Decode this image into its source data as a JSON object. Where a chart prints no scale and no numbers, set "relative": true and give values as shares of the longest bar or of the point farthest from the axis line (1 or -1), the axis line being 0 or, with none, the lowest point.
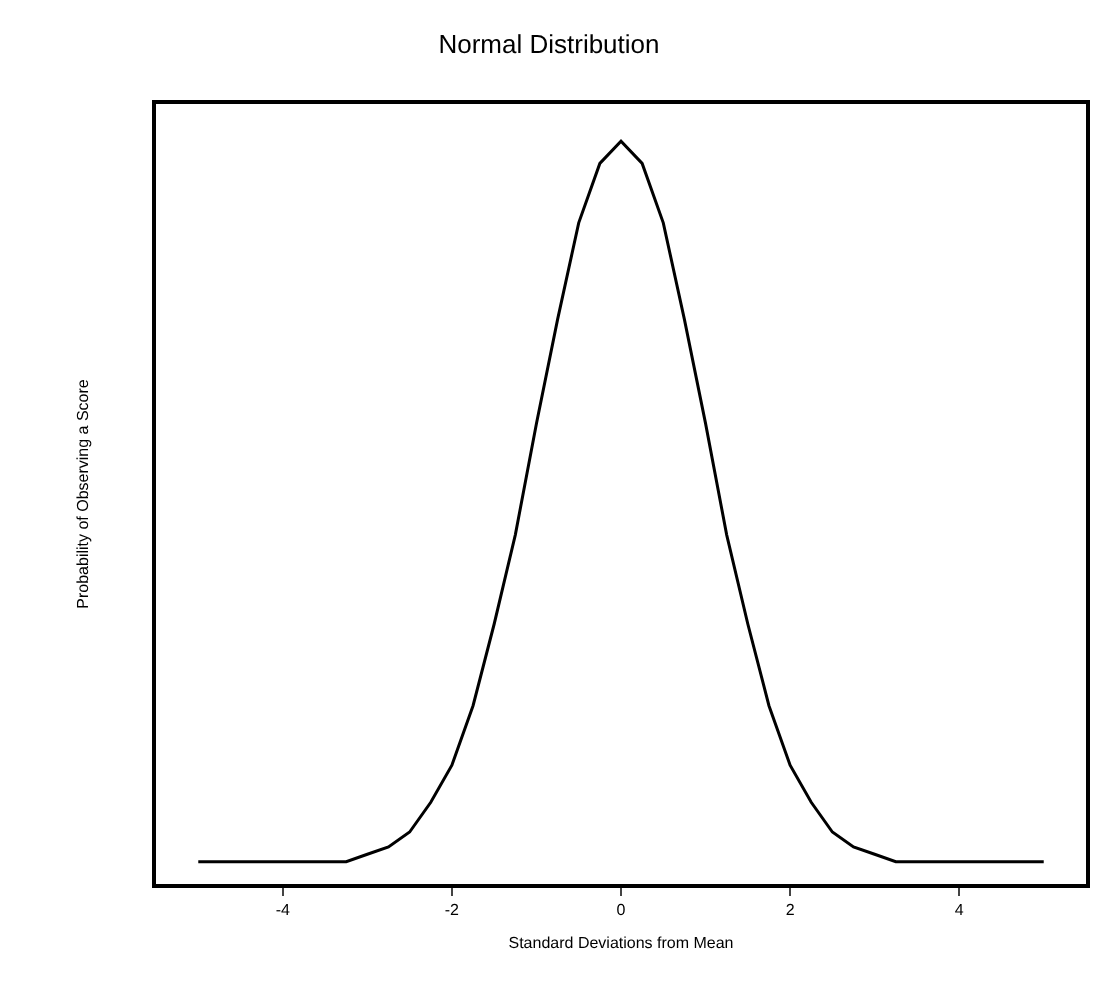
{
  "chart_data": {
    "type": "line",
    "title": "Normal Distribution",
    "xlabel": "Standard Deviations from Mean",
    "ylabel": "Probability of Observing a Score",
    "relative": true,
    "x": [
      -5,
      -4.75,
      -4.5,
      -4.25,
      -4,
      -3.75,
      -3.5,
      -3.25,
      -3,
      -2.75,
      -2.5,
      -2.25,
      -2,
      -1.75,
      -1.5,
      -1.25,
      -1,
      -0.75,
      -0.5,
      -0.25,
      0,
      0.25,
      0.5,
      0.75,
      1,
      1.25,
      1.5,
      1.75,
      2,
      2.25,
      2.5,
      2.75,
      3,
      3.25,
      3.5,
      3.75,
      4,
      4.25,
      4.5,
      4.75,
      5
    ],
    "series": [
      {
        "color": "#000000",
        "values": [
          0.03,
          0.03,
          0.03,
          0.03,
          0.03,
          0.03,
          0.03,
          0.03,
          0.04,
          0.05,
          0.07,
          0.11,
          0.16,
          0.24,
          0.35,
          0.47,
          0.62,
          0.76,
          0.89,
          0.97,
          1,
          0.97,
          0.89,
          0.76,
          0.62,
          0.47,
          0.35,
          0.24,
          0.16,
          0.11,
          0.07,
          0.05,
          0.04,
          0.03,
          0.03,
          0.03,
          0.03,
          0.03,
          0.03,
          0.03,
          0.03
        ]
      }
    ],
    "xlim": [
      -5.5,
      5.5
    ],
    "xticks": [
      -4,
      -2,
      0,
      2,
      4
    ],
    "grid": false,
    "marker": "none",
    "line_style": "solid"
  }
}
